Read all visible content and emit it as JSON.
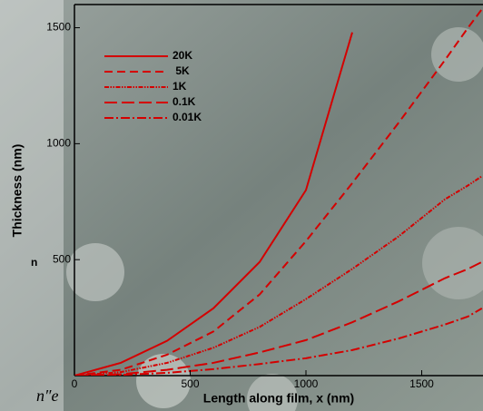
{
  "chart_data": {
    "type": "line",
    "xlabel": "Length along film, x (nm)",
    "ylabel": "Thickness (nm)",
    "x": [
      0,
      200,
      400,
      600,
      800,
      1000,
      1200,
      1400,
      1600,
      1700,
      1760
    ],
    "series": [
      {
        "name": "20K",
        "color": "#d40000",
        "values": [
          0,
          55,
          150,
          290,
          490,
          800,
          1480,
          null,
          null,
          null,
          null
        ]
      },
      {
        "name": " 5K",
        "color": "#d40000",
        "values": [
          0,
          25,
          90,
          190,
          350,
          580,
          830,
          1090,
          1360,
          1500,
          1580
        ]
      },
      {
        "name": "1K",
        "color": "#d40000",
        "values": [
          0,
          15,
          55,
          120,
          210,
          330,
          460,
          600,
          760,
          820,
          860
        ]
      },
      {
        "name": "0.1K",
        "color": "#d40000",
        "values": [
          0,
          6,
          25,
          55,
          100,
          153,
          230,
          320,
          420,
          460,
          490
        ]
      },
      {
        "name": "0.01K",
        "color": "#d40000",
        "values": [
          0,
          3,
          12,
          28,
          50,
          75,
          110,
          160,
          220,
          255,
          290
        ]
      }
    ],
    "xlim": [
      0,
      1765
    ],
    "ylim": [
      0,
      1600
    ],
    "xticks": [
      0,
      500,
      1000,
      1500
    ],
    "yticks": [
      500,
      1000,
      1500
    ],
    "annotations": [
      "n",
      "n″e"
    ]
  }
}
